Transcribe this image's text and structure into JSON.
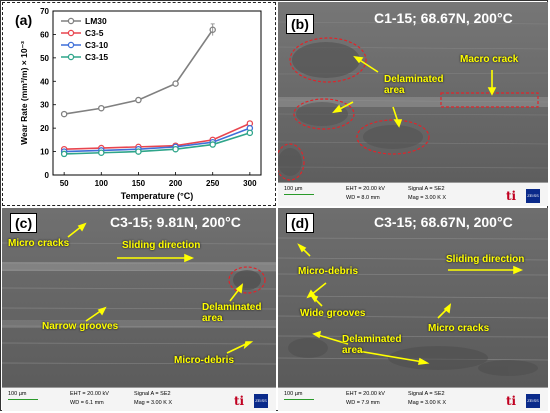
{
  "panel_a": {
    "label": "(a)",
    "chart_data": {
      "type": "line",
      "xlabel": "Temperature (°C)",
      "ylabel": "Wear Rate (mm³/m) × 10⁻³",
      "x": [
        50,
        100,
        150,
        200,
        250,
        300
      ],
      "xlim": [
        35,
        315
      ],
      "ylim": [
        0,
        70
      ],
      "yticks": [
        0,
        10,
        20,
        30,
        40,
        50,
        60,
        70
      ],
      "legend_position": "top-left",
      "series": [
        {
          "name": "LM30",
          "color": "#808080",
          "values": [
            26,
            28.5,
            32,
            39,
            62,
            null
          ]
        },
        {
          "name": "C3-5",
          "color": "#e8454f",
          "values": [
            11,
            11.5,
            12,
            12.5,
            15,
            22
          ]
        },
        {
          "name": "C3-10",
          "color": "#3f6fd8",
          "values": [
            10,
            10.5,
            11,
            12,
            14,
            20
          ]
        },
        {
          "name": "C3-15",
          "color": "#2fa58a",
          "values": [
            9,
            9.5,
            10,
            11,
            13,
            18
          ]
        }
      ]
    }
  },
  "panel_b": {
    "label": "(b)",
    "title": "C1-15; 68.67N, 200°C",
    "annotations": [
      "Delaminated area",
      "Macro crack"
    ],
    "scale": "100 µm",
    "eht": "EHT = 20.00 kV",
    "wd": "WD = 8.0 mm",
    "signal": "Signal A = SE2",
    "mag": "Mag = 3.00 K X"
  },
  "panel_c": {
    "label": "(c)",
    "title": "C3-15; 9.81N, 200°C",
    "annotations": [
      "Micro cracks",
      "Sliding direction",
      "Narrow grooves",
      "Delaminated area",
      "Micro-debris"
    ],
    "scale": "100 µm",
    "eht": "EHT = 20.00 kV",
    "wd": "WD = 6.1 mm",
    "signal": "Signal A = SE2",
    "mag": "Mag = 3.00 K X"
  },
  "panel_d": {
    "label": "(d)",
    "title": "C3-15; 68.67N, 200°C",
    "annotations": [
      "Micro-debris",
      "Sliding direction",
      "Wide grooves",
      "Delaminated area",
      "Micro cracks"
    ],
    "scale": "100 µm",
    "eht": "EHT = 20.00 kV",
    "wd": "WD = 7.9 mm",
    "signal": "Signal A = SE2",
    "mag": "Mag = 3.00 K X"
  },
  "logos": {
    "ti": "ti",
    "zeiss": "ZEISS"
  },
  "colors": {
    "annotation": "#ffff00",
    "ellipse": "#e0242a"
  }
}
